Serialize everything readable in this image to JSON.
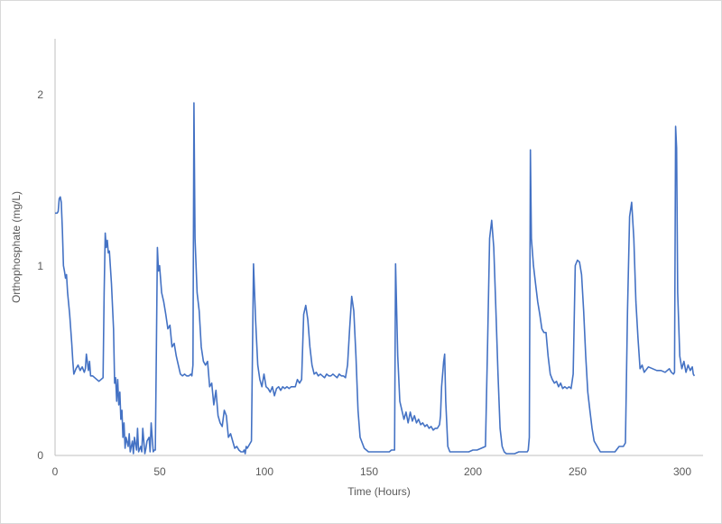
{
  "chart_data": {
    "type": "line",
    "title": "",
    "xlabel": "Time (Hours)",
    "ylabel": "Orthophosphate (mg/L)",
    "xlim": [
      0,
      310
    ],
    "ylim": [
      0,
      2.3
    ],
    "x_ticks": [
      0,
      50,
      100,
      150,
      200,
      250,
      300
    ],
    "y_ticks": [
      0,
      1,
      2
    ],
    "grid": false,
    "legend": null,
    "series": [
      {
        "name": "Orthophosphate",
        "color": "#4472C4",
        "x": [
          0,
          1,
          1.5,
          2,
          2.5,
          3,
          3.5,
          4,
          4.5,
          5,
          5.5,
          6,
          7,
          8,
          8.5,
          9,
          10,
          11,
          12,
          13,
          14,
          14.5,
          15,
          16,
          16.5,
          17,
          18,
          19,
          20,
          21,
          22,
          23,
          23.5,
          24,
          24.5,
          25,
          25.5,
          26,
          27,
          28,
          28.5,
          29,
          29.5,
          30,
          30.5,
          31,
          31.5,
          32,
          32.5,
          33,
          33.5,
          34,
          35,
          35.5,
          36,
          37,
          37.5,
          38,
          39,
          39.5,
          40,
          41,
          41.5,
          42,
          43,
          43.5,
          44,
          45,
          45.5,
          46,
          47,
          47.5,
          48,
          48.5,
          49,
          49.5,
          50,
          51,
          52,
          53,
          54,
          55,
          56,
          57,
          58,
          59,
          60,
          61,
          62,
          63,
          64,
          65,
          65.5,
          66,
          66.5,
          67,
          68,
          69,
          70,
          71,
          72,
          73,
          74,
          75,
          76,
          77,
          78,
          79,
          80,
          81,
          82,
          83,
          84,
          85,
          86,
          87,
          88,
          89,
          90,
          90.5,
          91,
          91.5,
          92,
          93,
          94,
          95,
          96,
          97,
          98,
          99,
          100,
          101,
          102,
          103,
          104,
          105,
          106,
          107,
          108,
          109,
          110,
          111,
          112,
          113,
          114,
          115,
          116,
          117,
          118,
          119,
          120,
          121,
          122,
          123,
          124,
          125,
          126,
          127,
          128,
          129,
          130,
          131,
          132,
          133,
          134,
          135,
          136,
          137,
          138,
          139,
          140,
          141,
          142,
          143,
          144,
          145,
          146,
          148,
          150,
          152,
          154,
          156,
          158,
          160,
          161,
          161.5,
          162,
          162.5,
          163,
          164,
          165,
          166,
          167,
          168,
          169,
          170,
          171,
          172,
          173,
          174,
          175,
          176,
          177,
          178,
          179,
          180,
          181,
          182,
          183,
          184,
          184.5,
          185,
          186,
          186.5,
          187,
          188,
          189,
          190,
          192,
          194,
          196,
          198,
          200,
          202,
          204,
          206,
          207,
          208,
          209,
          210,
          211,
          212,
          213,
          214,
          215,
          216,
          217,
          218,
          220,
          222,
          224,
          226,
          226.5,
          227,
          227.5,
          228,
          229,
          230,
          231,
          232,
          233,
          234,
          235,
          236,
          237,
          238,
          239,
          240,
          241,
          242,
          243,
          244,
          245,
          246,
          247,
          248,
          249,
          250,
          251,
          252,
          253,
          254,
          255,
          256,
          257,
          258,
          259,
          260,
          261,
          262,
          264,
          266,
          268,
          270,
          272,
          273,
          274,
          275,
          276,
          277,
          278,
          279,
          280,
          281,
          282,
          284,
          286,
          288,
          290,
          292,
          294,
          295,
          296,
          296.5,
          297,
          297.5,
          298,
          299,
          300,
          301,
          302,
          303,
          304,
          305,
          305.5,
          306
        ],
        "y": [
          1.34,
          1.34,
          1.35,
          1.42,
          1.43,
          1.4,
          1.25,
          1.05,
          1.02,
          0.98,
          1.0,
          0.9,
          0.78,
          0.62,
          0.52,
          0.45,
          0.48,
          0.5,
          0.47,
          0.49,
          0.46,
          0.48,
          0.56,
          0.47,
          0.52,
          0.44,
          0.44,
          0.43,
          0.42,
          0.41,
          0.42,
          0.43,
          0.9,
          1.23,
          1.15,
          1.19,
          1.12,
          1.13,
          0.95,
          0.7,
          0.4,
          0.43,
          0.3,
          0.42,
          0.28,
          0.35,
          0.2,
          0.25,
          0.1,
          0.18,
          0.04,
          0.1,
          0.05,
          0.12,
          0.02,
          0.08,
          0.01,
          0.1,
          0.03,
          0.15,
          0.02,
          0.05,
          0.02,
          0.15,
          0.01,
          0.04,
          0.08,
          0.1,
          0.02,
          0.18,
          0.02,
          0.03,
          0.03,
          0.6,
          1.15,
          1.02,
          1.05,
          0.9,
          0.85,
          0.78,
          0.7,
          0.72,
          0.6,
          0.62,
          0.55,
          0.5,
          0.45,
          0.44,
          0.45,
          0.44,
          0.44,
          0.45,
          0.44,
          0.5,
          1.95,
          1.2,
          0.9,
          0.8,
          0.6,
          0.52,
          0.5,
          0.52,
          0.38,
          0.4,
          0.28,
          0.36,
          0.22,
          0.18,
          0.16,
          0.25,
          0.22,
          0.1,
          0.12,
          0.08,
          0.04,
          0.05,
          0.03,
          0.02,
          0.02,
          0.03,
          0.01,
          0.05,
          0.04,
          0.06,
          0.08,
          1.06,
          0.75,
          0.5,
          0.42,
          0.38,
          0.45,
          0.38,
          0.37,
          0.35,
          0.38,
          0.33,
          0.37,
          0.38,
          0.36,
          0.38,
          0.37,
          0.38,
          0.37,
          0.38,
          0.38,
          0.38,
          0.42,
          0.4,
          0.42,
          0.78,
          0.83,
          0.75,
          0.6,
          0.5,
          0.45,
          0.46,
          0.44,
          0.45,
          0.44,
          0.43,
          0.45,
          0.44,
          0.44,
          0.45,
          0.44,
          0.43,
          0.45,
          0.44,
          0.44,
          0.43,
          0.5,
          0.7,
          0.88,
          0.8,
          0.55,
          0.25,
          0.1,
          0.04,
          0.02,
          0.02,
          0.02,
          0.02,
          0.02,
          0.02,
          0.03,
          0.03,
          0.03,
          0.03,
          1.06,
          0.55,
          0.3,
          0.25,
          0.2,
          0.24,
          0.18,
          0.24,
          0.19,
          0.22,
          0.18,
          0.2,
          0.17,
          0.18,
          0.16,
          0.17,
          0.15,
          0.16,
          0.14,
          0.15,
          0.15,
          0.17,
          0.22,
          0.38,
          0.52,
          0.56,
          0.3,
          0.05,
          0.02,
          0.02,
          0.02,
          0.02,
          0.02,
          0.02,
          0.03,
          0.03,
          0.04,
          0.05,
          0.6,
          1.2,
          1.3,
          1.15,
          0.8,
          0.45,
          0.15,
          0.05,
          0.02,
          0.01,
          0.01,
          0.01,
          0.01,
          0.02,
          0.02,
          0.02,
          0.03,
          0.1,
          1.69,
          1.2,
          1.05,
          0.95,
          0.85,
          0.78,
          0.7,
          0.68,
          0.68,
          0.55,
          0.45,
          0.42,
          0.4,
          0.41,
          0.38,
          0.4,
          0.37,
          0.38,
          0.37,
          0.38,
          0.37,
          0.45,
          1.05,
          1.08,
          1.07,
          1.0,
          0.8,
          0.55,
          0.35,
          0.25,
          0.15,
          0.08,
          0.06,
          0.04,
          0.02,
          0.02,
          0.02,
          0.02,
          0.02,
          0.05,
          0.05,
          0.07,
          0.8,
          1.32,
          1.4,
          1.2,
          0.85,
          0.65,
          0.48,
          0.5,
          0.46,
          0.49,
          0.48,
          0.47,
          0.47,
          0.46,
          0.48,
          0.46,
          0.45,
          0.46,
          1.82,
          1.7,
          0.9,
          0.55,
          0.48,
          0.52,
          0.46,
          0.5,
          0.47,
          0.49,
          0.45,
          0.44
        ]
      }
    ]
  },
  "labels": {
    "xlabel": "Time (Hours)",
    "ylabel": "Orthophosphate (mg/L)",
    "x_ticks": [
      "0",
      "50",
      "100",
      "150",
      "200",
      "250",
      "300"
    ],
    "y_ticks": [
      "0",
      "1",
      "2"
    ]
  }
}
